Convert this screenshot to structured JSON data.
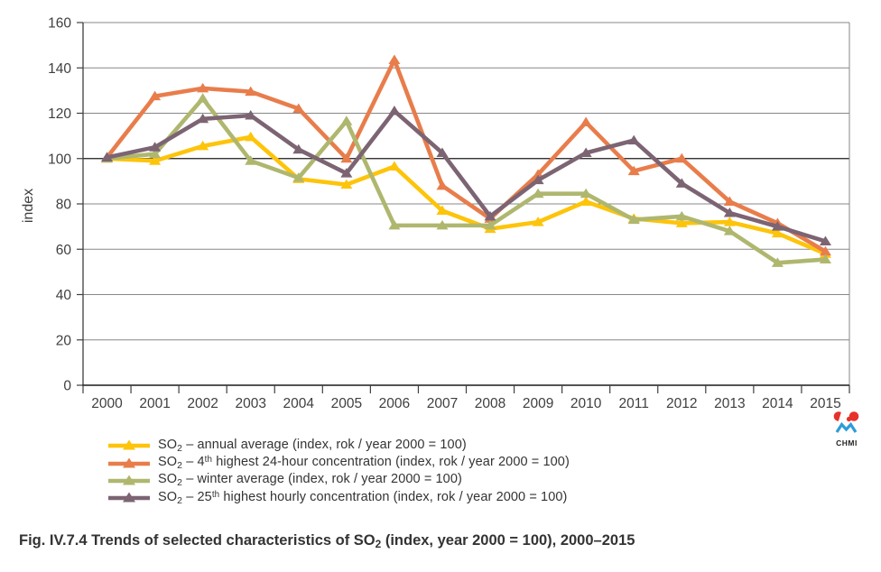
{
  "chart_data": {
    "type": "line",
    "title": "",
    "ylabel": "index",
    "ylim": [
      0,
      160
    ],
    "ytick_step": 20,
    "baseline_gridline": 100,
    "grid": true,
    "legend_position": "bottom-left",
    "categories": [
      "2000",
      "2001",
      "2002",
      "2003",
      "2004",
      "2005",
      "2006",
      "2007",
      "2008",
      "2009",
      "2010",
      "2011",
      "2012",
      "2013",
      "2014",
      "2015"
    ],
    "series": [
      {
        "name": "SO2 annual average (index, rok / year 2000 = 100)",
        "color": "#FDC40A",
        "values": [
          100,
          99,
          105.5,
          109.5,
          91,
          88.5,
          96.5,
          77,
          69,
          72,
          81,
          73.5,
          71.5,
          72,
          67,
          58
        ]
      },
      {
        "name": "SO2 4th highest 24-hour concentration (index, rok / year 2000 = 100)",
        "color": "#E87D4B",
        "values": [
          100.5,
          127.5,
          131,
          129.5,
          122,
          100,
          143.5,
          88,
          73.5,
          93,
          116,
          94.5,
          100,
          81,
          71.5,
          59
        ]
      },
      {
        "name": "SO2 winter average (index, rok / year 2000 = 100)",
        "color": "#AFB76F",
        "values": [
          100,
          102,
          126.5,
          99,
          91.5,
          116.5,
          70.5,
          70.5,
          70.5,
          84.5,
          84.5,
          73,
          74.5,
          68,
          54,
          55.5
        ]
      },
      {
        "name": "SO2 25th highest hourly concentration (index, rok / year 2000 = 100)",
        "color": "#7C6473",
        "values": [
          100.5,
          105,
          117.5,
          119,
          104,
          93.5,
          121,
          102.5,
          74.5,
          90.5,
          102.5,
          108,
          89,
          76,
          70,
          63.5
        ]
      }
    ]
  },
  "legend": {
    "items": [
      {
        "segments": [
          {
            "text": "SO"
          },
          {
            "text": "2",
            "style": "sub"
          },
          {
            "text": " – annual average (index, rok / year 2000 = 100)"
          }
        ]
      },
      {
        "segments": [
          {
            "text": "SO"
          },
          {
            "text": "2",
            "style": "sub"
          },
          {
            "text": " – 4"
          },
          {
            "text": "th",
            "style": "sup"
          },
          {
            "text": " highest 24-hour concentration (index, rok / year 2000 = 100)"
          }
        ]
      },
      {
        "segments": [
          {
            "text": "SO"
          },
          {
            "text": "2",
            "style": "sub"
          },
          {
            "text": " – winter average (index, rok / year 2000 = 100)"
          }
        ]
      },
      {
        "segments": [
          {
            "text": "SO"
          },
          {
            "text": "2",
            "style": "sub"
          },
          {
            "text": " – 25"
          },
          {
            "text": "th",
            "style": "sup"
          },
          {
            "text": " highest hourly concentration (index, rok / year 2000 = 100)"
          }
        ]
      }
    ]
  },
  "caption": {
    "segments": [
      {
        "text": "Fig. IV.7.4  Trends of selected characteristics of SO"
      },
      {
        "text": "2",
        "style": "sub"
      },
      {
        "text": " (index, year 2000 = 100), 2000–2015"
      }
    ]
  },
  "logo": {
    "label": "CHMI",
    "red": "#E63229",
    "blue": "#2D9CD8"
  },
  "axis_colors": {
    "grid": "#878787",
    "baseline": "#1a1a1a",
    "axis": "#3f3f3f",
    "tick_text": "#3f3f3f"
  }
}
